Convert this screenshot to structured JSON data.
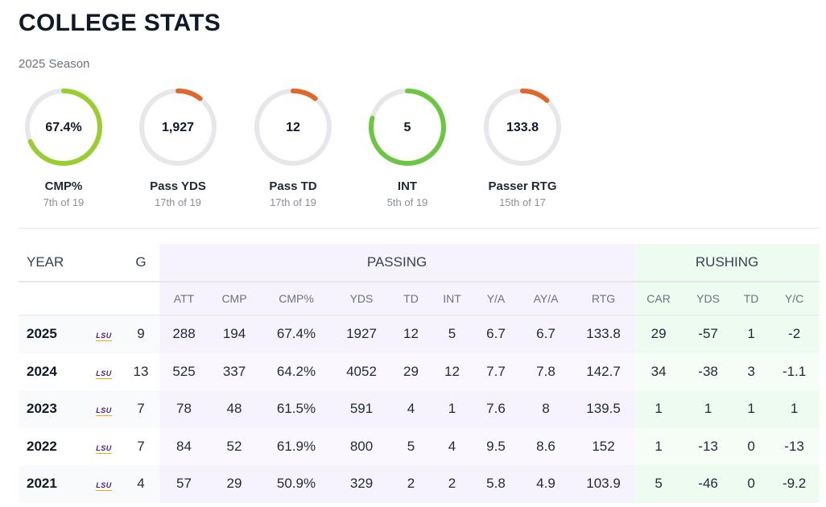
{
  "header": {
    "title": "COLLEGE STATS",
    "season": "2025 Season"
  },
  "rings": [
    {
      "value": "67.4%",
      "label": "CMP%",
      "rank": "7th of 19",
      "fill": 0.684,
      "color": "#9acd32"
    },
    {
      "value": "1,927",
      "label": "Pass YDS",
      "rank": "17th of 19",
      "fill": 0.105,
      "color": "#e0662c"
    },
    {
      "value": "12",
      "label": "Pass TD",
      "rank": "17th of 19",
      "fill": 0.105,
      "color": "#e0662c"
    },
    {
      "value": "5",
      "label": "INT",
      "rank": "5th of 19",
      "fill": 0.789,
      "color": "#6cc644"
    },
    {
      "value": "133.8",
      "label": "Passer RTG",
      "rank": "15th of 17",
      "fill": 0.118,
      "color": "#e0662c"
    }
  ],
  "table": {
    "year_header": "YEAR",
    "games_header": "G",
    "passing_header": "PASSING",
    "rushing_header": "RUSHING",
    "passing_columns": [
      "ATT",
      "CMP",
      "CMP%",
      "YDS",
      "TD",
      "INT",
      "Y/A",
      "AY/A",
      "RTG"
    ],
    "rushing_columns": [
      "CAR",
      "YDS",
      "TD",
      "Y/C"
    ],
    "rows": [
      {
        "year": "2025",
        "team": "LSU",
        "g": "9",
        "passing": [
          "288",
          "194",
          "67.4%",
          "1927",
          "12",
          "5",
          "6.7",
          "6.7",
          "133.8"
        ],
        "rushing": [
          "29",
          "-57",
          "1",
          "-2"
        ]
      },
      {
        "year": "2024",
        "team": "LSU",
        "g": "13",
        "passing": [
          "525",
          "337",
          "64.2%",
          "4052",
          "29",
          "12",
          "7.7",
          "7.8",
          "142.7"
        ],
        "rushing": [
          "34",
          "-38",
          "3",
          "-1.1"
        ]
      },
      {
        "year": "2023",
        "team": "LSU",
        "g": "7",
        "passing": [
          "78",
          "48",
          "61.5%",
          "591",
          "4",
          "1",
          "7.6",
          "8",
          "139.5"
        ],
        "rushing": [
          "1",
          "1",
          "1",
          "1"
        ]
      },
      {
        "year": "2022",
        "team": "LSU",
        "g": "7",
        "passing": [
          "84",
          "52",
          "61.9%",
          "800",
          "5",
          "4",
          "9.5",
          "8.6",
          "152"
        ],
        "rushing": [
          "1",
          "-13",
          "0",
          "-13"
        ]
      },
      {
        "year": "2021",
        "team": "LSU",
        "g": "4",
        "passing": [
          "57",
          "29",
          "50.9%",
          "329",
          "2",
          "2",
          "5.8",
          "4.9",
          "103.9"
        ],
        "rushing": [
          "5",
          "-46",
          "0",
          "-9.2"
        ]
      }
    ]
  }
}
